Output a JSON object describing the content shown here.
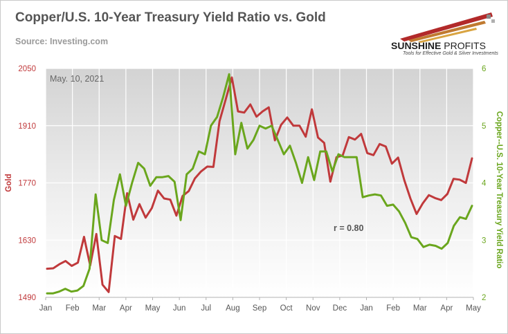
{
  "header": {
    "title": "Copper/U.S. 10-Year Treasury Yield Ratio vs. Gold",
    "source": "Source: Investing.com"
  },
  "logo": {
    "name_bold": "SUNSHINE",
    "name_light": " PROFITS",
    "tagline": "Tools for Effective Gold & Silver Investments",
    "colors": [
      "#b22a2a",
      "#c07a30",
      "#d9a441"
    ]
  },
  "chart_data": {
    "type": "line",
    "title": "Copper/U.S. 10-Year Treasury Yield Ratio vs. Gold",
    "date_label": "May. 10, 2021",
    "annotation": "r = 0.80",
    "grid": true,
    "legend": "none",
    "x_ticks": [
      "Jan",
      "Feb",
      "Mar",
      "Apr",
      "May",
      "Jun",
      "Jul",
      "Aug",
      "Sep",
      "Oct",
      "Nov",
      "Dec",
      "Jan",
      "Feb",
      "Mar",
      "Apr",
      "May"
    ],
    "y_left": {
      "label": "Gold",
      "ticks": [
        "1490",
        "1630",
        "1770",
        "1910",
        "2050"
      ],
      "range": [
        1490,
        2050
      ],
      "color": "#c0393b"
    },
    "y_right": {
      "label": "Copper--U.S. 10-Year Treasury Yield Ratio",
      "ticks": [
        "2",
        "3",
        "4",
        "5",
        "6"
      ],
      "range": [
        2,
        6
      ],
      "color": "#6aa61d"
    },
    "series": [
      {
        "name": "Gold",
        "axis": "left",
        "color": "#c0393b",
        "values": [
          1560,
          1561,
          1571,
          1579,
          1567,
          1575,
          1638,
          1568,
          1645,
          1521,
          1503,
          1640,
          1633,
          1745,
          1680,
          1718,
          1685,
          1708,
          1751,
          1732,
          1729,
          1690,
          1738,
          1750,
          1781,
          1798,
          1810,
          1809,
          1921,
          1974,
          2028,
          1945,
          1942,
          1962,
          1932,
          1945,
          1955,
          1874,
          1912,
          1930,
          1910,
          1910,
          1883,
          1950,
          1881,
          1868,
          1773,
          1833,
          1837,
          1882,
          1876,
          1890,
          1843,
          1838,
          1865,
          1859,
          1817,
          1832,
          1777,
          1732,
          1694,
          1720,
          1740,
          1733,
          1728,
          1743,
          1780,
          1778,
          1770,
          1830
        ]
      },
      {
        "name": "Copper/U.S. 10-Year Treasury Yield Ratio",
        "axis": "right",
        "color": "#6aa61d",
        "values": [
          2.07,
          2.07,
          2.1,
          2.15,
          2.1,
          2.12,
          2.2,
          2.5,
          3.8,
          3.0,
          2.95,
          3.7,
          4.15,
          3.6,
          4.0,
          4.35,
          4.25,
          3.95,
          4.1,
          4.1,
          4.12,
          4.02,
          3.35,
          4.15,
          4.25,
          4.55,
          4.5,
          5.0,
          5.15,
          5.5,
          5.9,
          4.5,
          5.05,
          4.6,
          4.75,
          5.0,
          4.95,
          5.0,
          4.75,
          4.5,
          4.65,
          4.35,
          4.0,
          4.45,
          4.05,
          4.55,
          4.55,
          4.2,
          4.5,
          4.45,
          4.45,
          4.45,
          3.75,
          3.78,
          3.8,
          3.78,
          3.6,
          3.62,
          3.5,
          3.3,
          3.05,
          3.02,
          2.88,
          2.92,
          2.9,
          2.85,
          2.95,
          3.25,
          3.4,
          3.37,
          3.6
        ]
      }
    ]
  }
}
